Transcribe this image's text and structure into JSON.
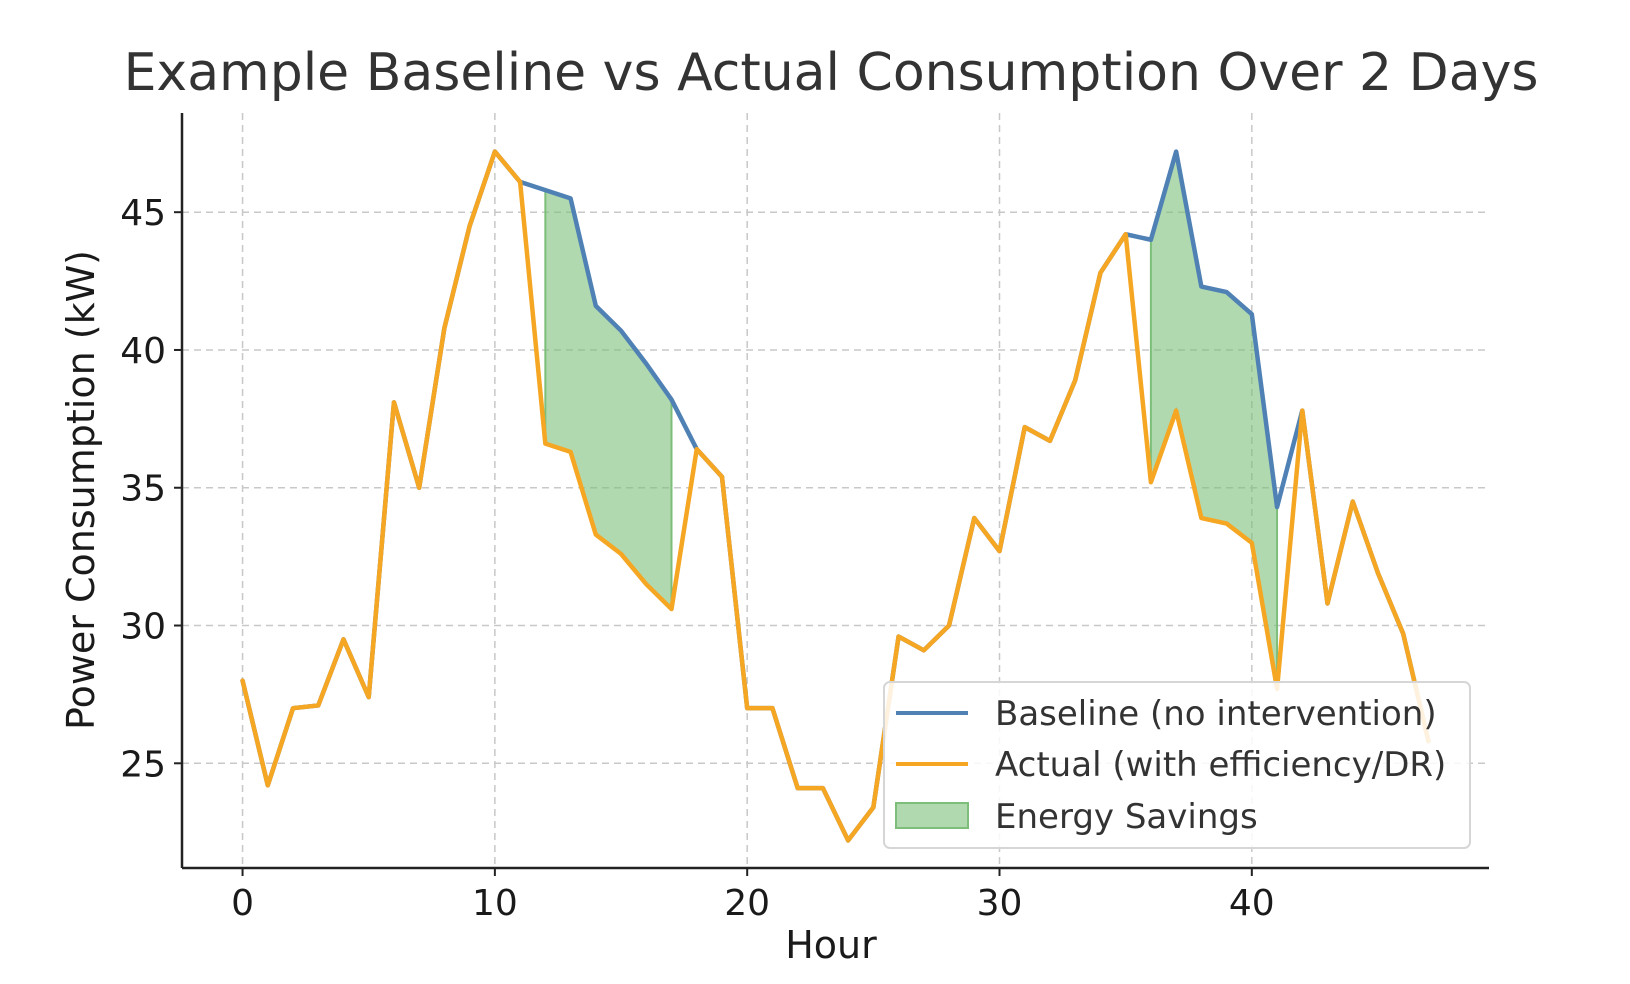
{
  "chart_data": {
    "type": "line",
    "title": "Example Baseline vs Actual Consumption Over 2 Days",
    "xlabel": "Hour",
    "ylabel": "Power Consumption (kW)",
    "xlim": [
      -2.4,
      49.4
    ],
    "ylim": [
      21.2,
      48.6
    ],
    "x_ticks": [
      0,
      10,
      20,
      30,
      40
    ],
    "y_ticks": [
      25,
      30,
      35,
      40,
      45
    ],
    "grid": true,
    "legend_position": "lower right",
    "x": [
      0,
      1,
      2,
      3,
      4,
      5,
      6,
      7,
      8,
      9,
      10,
      11,
      12,
      13,
      14,
      15,
      16,
      17,
      18,
      19,
      20,
      21,
      22,
      23,
      24,
      25,
      26,
      27,
      28,
      29,
      30,
      31,
      32,
      33,
      34,
      35,
      36,
      37,
      38,
      39,
      40,
      41,
      42,
      43,
      44,
      45,
      46,
      47
    ],
    "series": [
      {
        "name": "Baseline (no intervention)",
        "color": "#4f81b5",
        "values": [
          28.0,
          24.2,
          27.0,
          27.1,
          29.5,
          27.4,
          38.1,
          35.0,
          40.8,
          44.5,
          47.2,
          46.1,
          45.8,
          45.5,
          41.6,
          40.7,
          39.5,
          38.2,
          36.4,
          35.4,
          27.0,
          27.0,
          24.1,
          24.1,
          22.2,
          23.4,
          29.6,
          29.1,
          30.0,
          33.9,
          32.7,
          37.2,
          36.7,
          38.9,
          42.8,
          44.2,
          44.0,
          47.2,
          42.3,
          42.1,
          41.3,
          34.3,
          37.8,
          30.8,
          34.5,
          31.9,
          29.7,
          25.8
        ]
      },
      {
        "name": "Actual (with efficiency/DR)",
        "color": "#f5a623",
        "values": [
          28.0,
          24.2,
          27.0,
          27.1,
          29.5,
          27.4,
          38.1,
          35.0,
          40.8,
          44.5,
          47.2,
          46.1,
          36.6,
          36.3,
          33.3,
          32.6,
          31.5,
          30.6,
          36.4,
          35.4,
          27.0,
          27.0,
          24.1,
          24.1,
          22.2,
          23.4,
          29.6,
          29.1,
          30.0,
          33.9,
          32.7,
          37.2,
          36.7,
          38.9,
          42.8,
          44.2,
          35.2,
          37.8,
          33.9,
          33.7,
          33.0,
          27.7,
          37.8,
          30.8,
          34.5,
          31.9,
          29.7,
          25.8
        ]
      }
    ],
    "savings": {
      "name": "Energy Savings",
      "color": "#7dbf7a",
      "ranges": [
        [
          12,
          17
        ],
        [
          36,
          41
        ]
      ]
    }
  }
}
